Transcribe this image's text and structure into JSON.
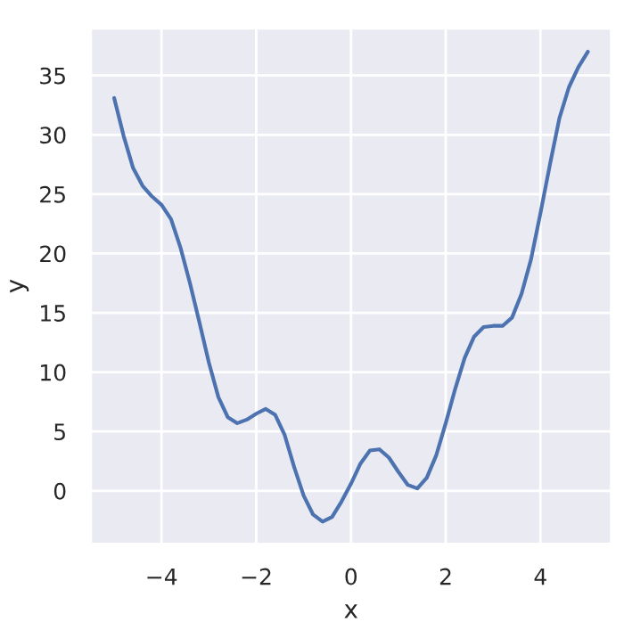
{
  "chart_data": {
    "type": "line",
    "xlabel": "x",
    "ylabel": "y",
    "x": [
      -5,
      -4.8,
      -4.6,
      -4.4,
      -4.2,
      -4,
      -3.8,
      -3.6,
      -3.4,
      -3.2,
      -3,
      -2.8,
      -2.6,
      -2.4,
      -2.2,
      -2,
      -1.8,
      -1.6,
      -1.4,
      -1.2,
      -1,
      -0.8,
      -0.6,
      -0.4,
      -0.2,
      0,
      0.2,
      0.4,
      0.6,
      0.8,
      1,
      1.2,
      1.4,
      1.6,
      1.8,
      2,
      2.2,
      2.4,
      2.6,
      2.8,
      3,
      3.2,
      3.4,
      3.6,
      3.8,
      4,
      4.2,
      4.4,
      4.6,
      4.8,
      5
    ],
    "series": [
      {
        "color": "#4c72b0",
        "values": [
          33.1,
          29.9,
          27.2,
          25.7,
          24.8,
          24.1,
          22.9,
          20.5,
          17.5,
          14.2,
          10.8,
          7.9,
          6.2,
          5.7,
          6.0,
          6.5,
          6.9,
          6.4,
          4.7,
          2.0,
          -0.4,
          -2.0,
          -2.6,
          -2.2,
          -0.9,
          0.6,
          2.3,
          3.4,
          3.5,
          2.8,
          1.6,
          0.5,
          0.2,
          1.1,
          3.0,
          5.7,
          8.6,
          11.2,
          13.0,
          13.8,
          13.9,
          13.9,
          14.6,
          16.6,
          19.5,
          23.4,
          27.5,
          31.4,
          34.0,
          35.7,
          37.0
        ]
      }
    ],
    "xlim": [
      -5.5,
      5.5
    ],
    "ylim": [
      -4.5,
      39
    ],
    "xticks": [
      {
        "value": -4,
        "label": "−4"
      },
      {
        "value": -2,
        "label": "−2"
      },
      0,
      2,
      4
    ],
    "yticks": [
      0,
      5,
      10,
      15,
      20,
      25,
      30,
      35
    ],
    "grid": true,
    "marker": "none",
    "line_style": "solid"
  }
}
